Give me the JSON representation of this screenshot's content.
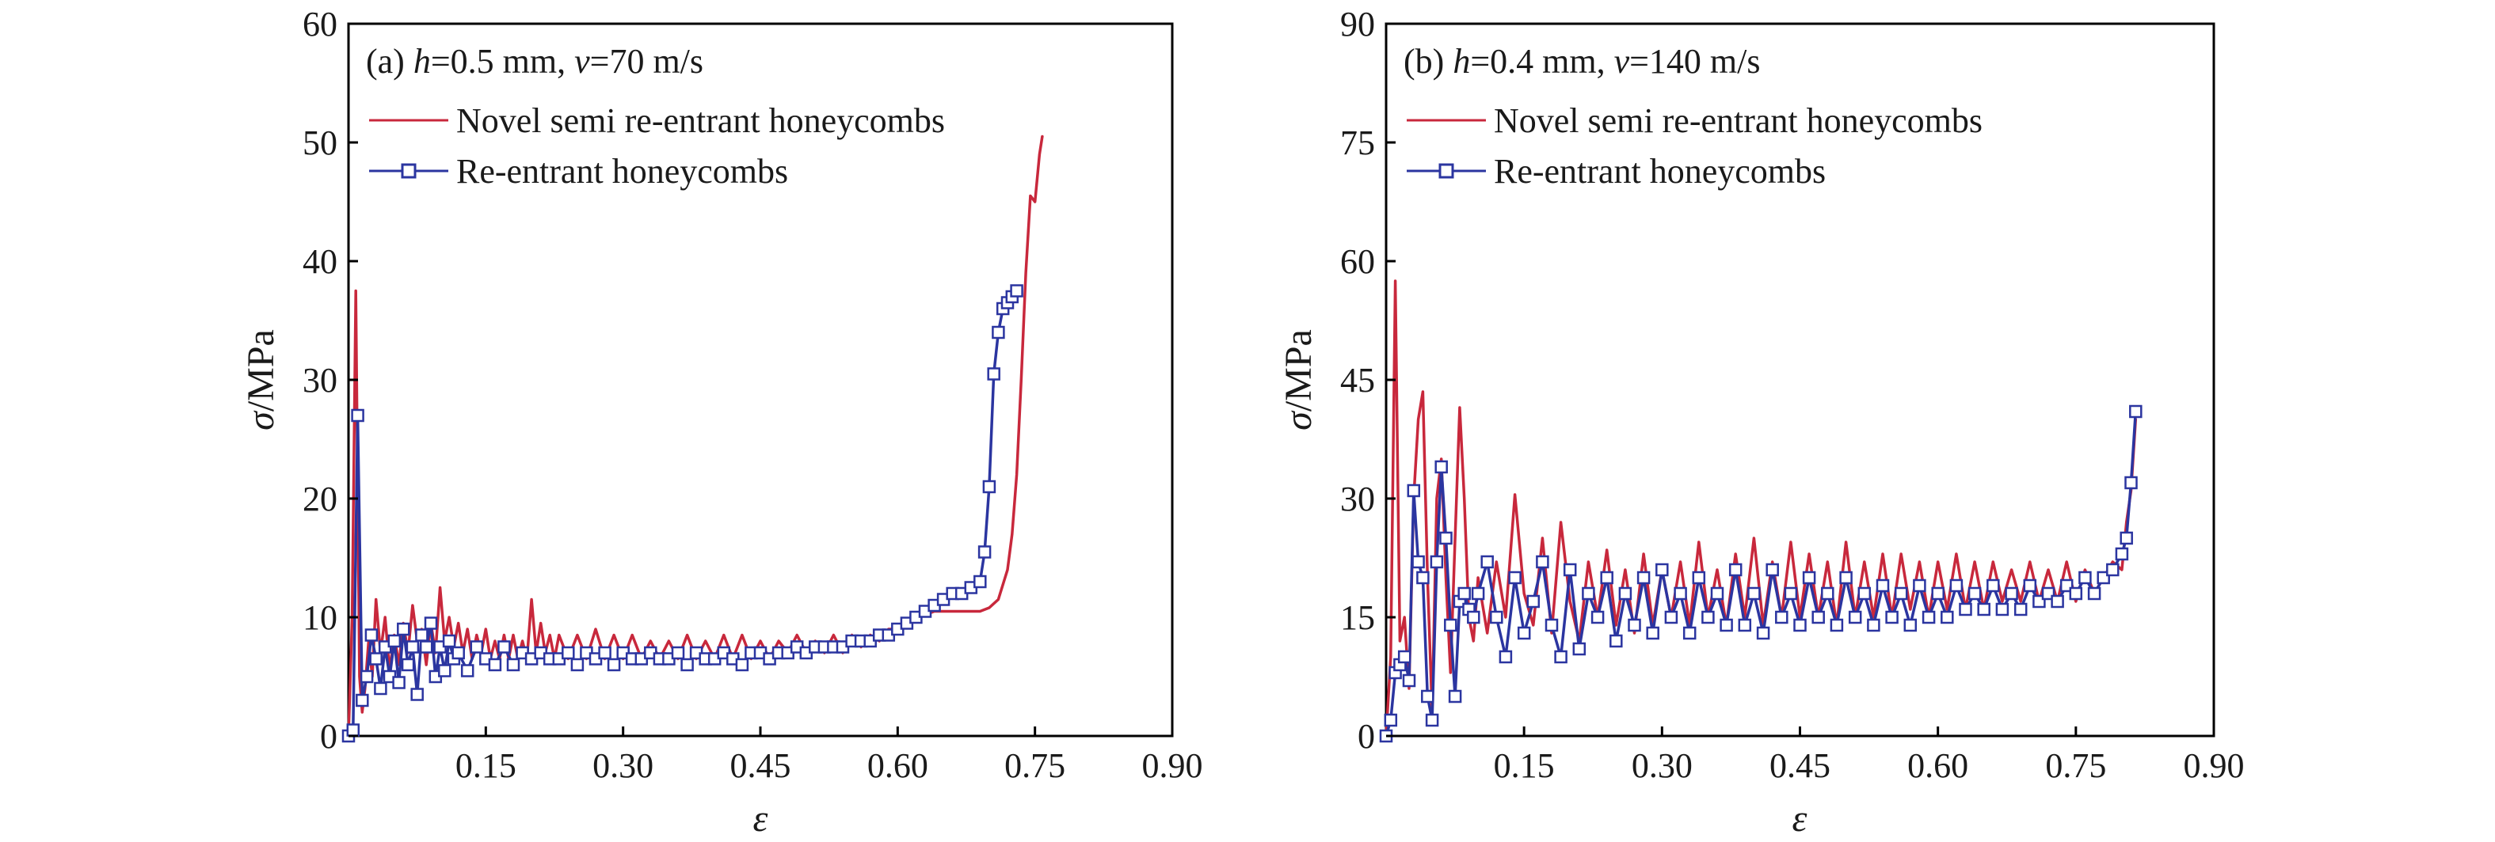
{
  "colors": {
    "novel": "#c8283c",
    "reentrant": "#2b35a0",
    "axis": "#000000"
  },
  "chart_data": [
    {
      "type": "line",
      "annotation_prefix": "(a) ",
      "annotation_h": "h",
      "annotation_h_value": "=0.5 mm, ",
      "annotation_v": "v",
      "annotation_v_value": "=70 m/s",
      "xlabel": "ε",
      "ylabel_symbol": "σ",
      "ylabel_unit": "/MPa",
      "xlim": [
        0,
        0.9
      ],
      "ylim": [
        0,
        60
      ],
      "xticks": [
        0.15,
        0.3,
        0.45,
        0.6,
        0.75,
        0.9
      ],
      "xtick_labels": [
        "0.15",
        "0.30",
        "0.45",
        "0.60",
        "0.75",
        "0.90"
      ],
      "yticks": [
        0,
        10,
        20,
        30,
        40,
        50,
        60
      ],
      "ytick_labels": [
        "0",
        "10",
        "20",
        "30",
        "40",
        "50",
        "60"
      ],
      "grid": false,
      "legend_position": "top-left",
      "series": [
        {
          "name": "Novel semi re-entrant honeycombs",
          "marker": "none",
          "x": [
            0.0,
            0.004,
            0.008,
            0.012,
            0.015,
            0.018,
            0.022,
            0.026,
            0.03,
            0.035,
            0.04,
            0.045,
            0.05,
            0.055,
            0.06,
            0.065,
            0.07,
            0.075,
            0.08,
            0.085,
            0.09,
            0.095,
            0.1,
            0.105,
            0.11,
            0.115,
            0.12,
            0.125,
            0.13,
            0.135,
            0.14,
            0.145,
            0.15,
            0.155,
            0.16,
            0.165,
            0.17,
            0.175,
            0.18,
            0.185,
            0.19,
            0.195,
            0.2,
            0.205,
            0.21,
            0.215,
            0.22,
            0.225,
            0.23,
            0.24,
            0.25,
            0.26,
            0.27,
            0.28,
            0.29,
            0.3,
            0.31,
            0.32,
            0.33,
            0.34,
            0.35,
            0.36,
            0.37,
            0.38,
            0.39,
            0.4,
            0.41,
            0.42,
            0.43,
            0.44,
            0.45,
            0.46,
            0.47,
            0.48,
            0.49,
            0.5,
            0.51,
            0.52,
            0.53,
            0.54,
            0.55,
            0.56,
            0.57,
            0.58,
            0.59,
            0.6,
            0.61,
            0.62,
            0.63,
            0.64,
            0.65,
            0.66,
            0.67,
            0.68,
            0.69,
            0.7,
            0.71,
            0.72,
            0.725,
            0.73,
            0.735,
            0.74,
            0.745,
            0.75,
            0.755,
            0.758
          ],
          "y": [
            0,
            10,
            37.5,
            5,
            2,
            4,
            8,
            5,
            11.5,
            7,
            10,
            5.5,
            8.5,
            6,
            9.5,
            7,
            11,
            8,
            9,
            6,
            9.5,
            7,
            12.5,
            8,
            10,
            7.5,
            9.5,
            7,
            9,
            6.5,
            8.5,
            7,
            9,
            6.5,
            8,
            6.5,
            8.5,
            6.5,
            8.5,
            6.5,
            8,
            6.5,
            11.5,
            7,
            9.5,
            7,
            8.5,
            6.5,
            8.5,
            6.5,
            8.5,
            6.5,
            9,
            6.5,
            8.5,
            6.5,
            8.5,
            6.5,
            8,
            6.5,
            8,
            6.5,
            8.5,
            6.5,
            8,
            6.5,
            8.5,
            6.5,
            8.5,
            6.5,
            8,
            6.5,
            8,
            7,
            8.5,
            7,
            8,
            7,
            8.5,
            7,
            8.5,
            7.5,
            8.5,
            8,
            9,
            9,
            9.5,
            10,
            10.2,
            10.5,
            10.5,
            10.5,
            10.5,
            10.5,
            10.5,
            10.8,
            11.5,
            14,
            17,
            22,
            30,
            39,
            45.5,
            45,
            49,
            50.5
          ]
        },
        {
          "name": "Re-entrant honeycombs",
          "marker": "square",
          "x": [
            0.0,
            0.005,
            0.01,
            0.015,
            0.02,
            0.025,
            0.03,
            0.035,
            0.04,
            0.045,
            0.05,
            0.055,
            0.06,
            0.065,
            0.07,
            0.075,
            0.08,
            0.085,
            0.09,
            0.095,
            0.1,
            0.105,
            0.11,
            0.115,
            0.12,
            0.13,
            0.14,
            0.15,
            0.16,
            0.17,
            0.18,
            0.19,
            0.2,
            0.21,
            0.22,
            0.23,
            0.24,
            0.25,
            0.26,
            0.27,
            0.28,
            0.29,
            0.3,
            0.31,
            0.32,
            0.33,
            0.34,
            0.35,
            0.36,
            0.37,
            0.38,
            0.39,
            0.4,
            0.41,
            0.42,
            0.43,
            0.44,
            0.45,
            0.46,
            0.47,
            0.48,
            0.49,
            0.5,
            0.51,
            0.52,
            0.53,
            0.54,
            0.55,
            0.56,
            0.57,
            0.58,
            0.59,
            0.6,
            0.61,
            0.62,
            0.63,
            0.64,
            0.65,
            0.66,
            0.67,
            0.68,
            0.69,
            0.695,
            0.7,
            0.705,
            0.71,
            0.715,
            0.72,
            0.725,
            0.73
          ],
          "y": [
            0,
            0.5,
            27,
            3,
            5,
            8.5,
            6.5,
            4,
            7.5,
            5,
            8,
            4.5,
            9,
            6,
            7.5,
            3.5,
            8.5,
            7.5,
            9.5,
            5,
            7.5,
            5.5,
            8,
            6.5,
            7,
            5.5,
            7.5,
            6.5,
            6,
            7.5,
            6,
            7,
            6.5,
            7,
            6.5,
            6.5,
            7,
            6,
            7,
            6.5,
            7,
            6,
            7,
            6.5,
            6.5,
            7,
            6.5,
            6.5,
            7,
            6,
            7,
            6.5,
            6.5,
            7,
            6.5,
            6,
            7,
            7,
            6.5,
            7,
            7,
            7.5,
            7,
            7.5,
            7.5,
            7.5,
            7.5,
            8,
            8,
            8,
            8.5,
            8.5,
            9,
            9.5,
            10,
            10.5,
            11,
            11.5,
            12,
            12,
            12.5,
            13,
            15.5,
            21,
            30.5,
            34,
            36,
            36.5,
            37,
            37.5
          ]
        }
      ]
    },
    {
      "type": "line",
      "annotation_prefix": "(b) ",
      "annotation_h": "h",
      "annotation_h_value": "=0.4 mm, ",
      "annotation_v": "v",
      "annotation_v_value": "=140 m/s",
      "xlabel": "ε",
      "ylabel_symbol": "σ",
      "ylabel_unit": "/MPa",
      "xlim": [
        0,
        0.9
      ],
      "ylim": [
        0,
        90
      ],
      "xticks": [
        0.15,
        0.3,
        0.45,
        0.6,
        0.75,
        0.9
      ],
      "xtick_labels": [
        "0.15",
        "0.30",
        "0.45",
        "0.60",
        "0.75",
        "0.90"
      ],
      "yticks": [
        0,
        15,
        30,
        45,
        60,
        75,
        90
      ],
      "ytick_labels": [
        "0",
        "15",
        "30",
        "45",
        "60",
        "75",
        "90"
      ],
      "grid": false,
      "legend_position": "top-left",
      "series": [
        {
          "name": "Novel semi re-entrant honeycombs",
          "marker": "none",
          "x": [
            0.0,
            0.005,
            0.01,
            0.015,
            0.02,
            0.025,
            0.03,
            0.035,
            0.04,
            0.045,
            0.05,
            0.055,
            0.06,
            0.065,
            0.07,
            0.075,
            0.08,
            0.085,
            0.09,
            0.095,
            0.1,
            0.11,
            0.12,
            0.13,
            0.14,
            0.15,
            0.16,
            0.17,
            0.18,
            0.19,
            0.2,
            0.21,
            0.22,
            0.23,
            0.24,
            0.25,
            0.26,
            0.27,
            0.28,
            0.29,
            0.3,
            0.31,
            0.32,
            0.33,
            0.34,
            0.35,
            0.36,
            0.37,
            0.38,
            0.39,
            0.4,
            0.41,
            0.42,
            0.43,
            0.44,
            0.45,
            0.46,
            0.47,
            0.48,
            0.49,
            0.5,
            0.51,
            0.52,
            0.53,
            0.54,
            0.55,
            0.56,
            0.57,
            0.58,
            0.59,
            0.6,
            0.61,
            0.62,
            0.63,
            0.64,
            0.65,
            0.66,
            0.67,
            0.68,
            0.69,
            0.7,
            0.71,
            0.72,
            0.73,
            0.74,
            0.75,
            0.76,
            0.77,
            0.78,
            0.79,
            0.8,
            0.805,
            0.81,
            0.815
          ],
          "y": [
            0,
            10,
            57.5,
            12,
            15,
            6,
            30,
            40,
            43.5,
            20,
            3,
            30,
            35,
            20,
            8,
            25,
            41.5,
            30,
            15,
            12,
            20,
            13,
            22,
            15,
            30.5,
            18,
            14,
            25,
            13,
            27,
            17,
            12,
            22,
            15,
            23.5,
            14,
            21,
            13,
            23,
            14,
            21,
            15,
            22,
            14,
            24.5,
            15,
            21,
            14,
            23,
            15,
            25,
            14,
            22,
            15,
            24.5,
            15,
            23,
            15,
            22,
            14,
            24.5,
            15,
            22,
            15,
            23,
            15,
            23,
            16,
            22,
            15,
            22,
            16,
            23,
            16,
            22,
            16,
            22,
            17,
            21,
            17,
            22,
            17,
            21,
            17,
            22,
            17,
            21,
            18,
            20,
            22,
            21,
            27,
            31,
            40
          ]
        },
        {
          "name": "Re-entrant honeycombs",
          "marker": "square",
          "x": [
            0.0,
            0.005,
            0.01,
            0.015,
            0.02,
            0.025,
            0.03,
            0.035,
            0.04,
            0.045,
            0.05,
            0.055,
            0.06,
            0.065,
            0.07,
            0.075,
            0.08,
            0.085,
            0.09,
            0.095,
            0.1,
            0.11,
            0.12,
            0.13,
            0.14,
            0.15,
            0.16,
            0.17,
            0.18,
            0.19,
            0.2,
            0.21,
            0.22,
            0.23,
            0.24,
            0.25,
            0.26,
            0.27,
            0.28,
            0.29,
            0.3,
            0.31,
            0.32,
            0.33,
            0.34,
            0.35,
            0.36,
            0.37,
            0.38,
            0.39,
            0.4,
            0.41,
            0.42,
            0.43,
            0.44,
            0.45,
            0.46,
            0.47,
            0.48,
            0.49,
            0.5,
            0.51,
            0.52,
            0.53,
            0.54,
            0.55,
            0.56,
            0.57,
            0.58,
            0.59,
            0.6,
            0.61,
            0.62,
            0.63,
            0.64,
            0.65,
            0.66,
            0.67,
            0.68,
            0.69,
            0.7,
            0.71,
            0.72,
            0.73,
            0.74,
            0.75,
            0.76,
            0.77,
            0.78,
            0.79,
            0.8,
            0.805,
            0.81,
            0.815
          ],
          "y": [
            0,
            2,
            8,
            9,
            10,
            7,
            31,
            22,
            20,
            5,
            2,
            22,
            34,
            25,
            14,
            5,
            17,
            18,
            16,
            15,
            18,
            22,
            15,
            10,
            20,
            13,
            17,
            22,
            14,
            10,
            21,
            11,
            18,
            15,
            20,
            12,
            18,
            14,
            20,
            13,
            21,
            15,
            18,
            13,
            20,
            15,
            18,
            14,
            21,
            14,
            18,
            13,
            21,
            15,
            18,
            14,
            20,
            15,
            18,
            14,
            20,
            15,
            18,
            14,
            19,
            15,
            18,
            14,
            19,
            15,
            18,
            15,
            19,
            16,
            18,
            16,
            19,
            16,
            18,
            16,
            19,
            17,
            18,
            17,
            19,
            18,
            20,
            18,
            20,
            21,
            23,
            25,
            32,
            41
          ]
        }
      ]
    }
  ]
}
